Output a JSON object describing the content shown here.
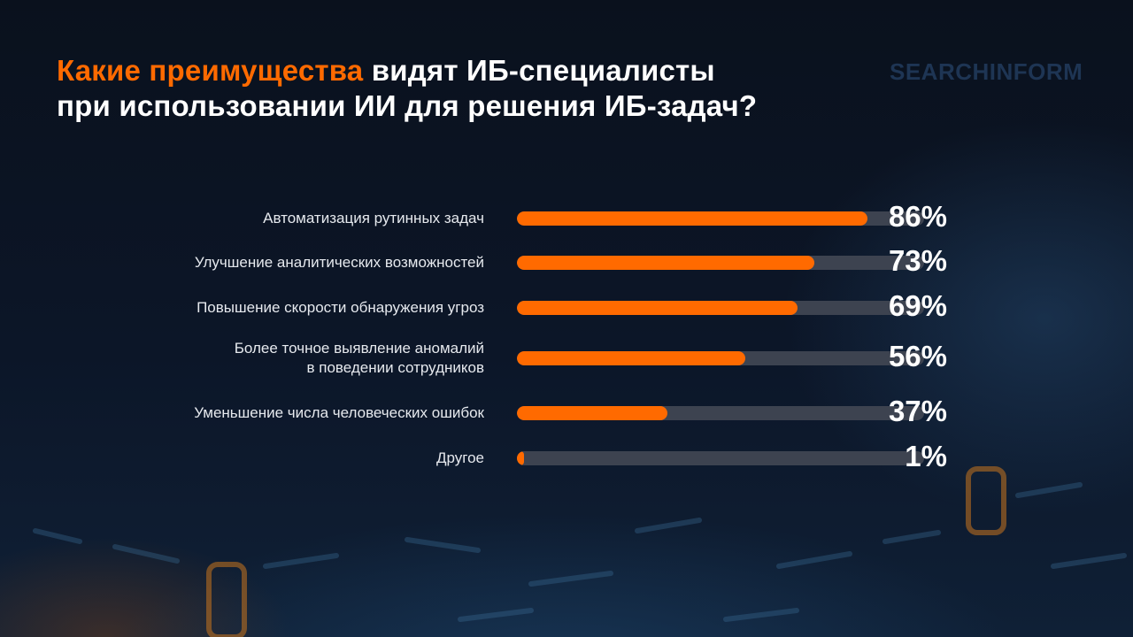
{
  "title": {
    "accent": "Какие преимущества",
    "rest_line1": " видят ИБ-специалисты",
    "line2": "при использовании ИИ для решения ИБ-задач?"
  },
  "logo": "SEARCHINFORM",
  "colors": {
    "accent": "#ff6a00",
    "track": "#3d4350",
    "background": "#0b1322",
    "text": "#ffffff"
  },
  "chart_data": {
    "type": "bar",
    "orientation": "horizontal",
    "categories": [
      "Автоматизация рутинных задач",
      "Улучшение аналитических возможностей",
      "Повышение скорости обнаружения угроз",
      "Более точное выявление аномалий\nв поведении сотрудников",
      "Уменьшение числа человеческих ошибок",
      "Другое"
    ],
    "values": [
      86,
      73,
      69,
      56,
      37,
      1
    ],
    "value_labels": [
      "86%",
      "73%",
      "69%",
      "56%",
      "37%",
      "1%"
    ],
    "unit": "%",
    "xlim": [
      0,
      100
    ],
    "grid": false,
    "legend": "none"
  }
}
